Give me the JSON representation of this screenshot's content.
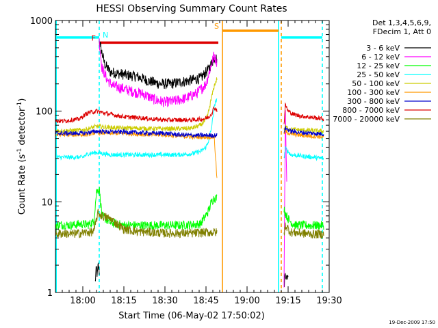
{
  "chart_data": {
    "type": "line",
    "title": "HESSI Observing Summary Count Rates",
    "xlabel": "Start Time (06-May-02 17:50:02)",
    "ylabel": "Count Rate (s",
    "ylabel_sup": "-1",
    "ylabel_mid": " detector",
    "ylabel_sup2": "-1",
    "ylabel_end": ")",
    "y_scale": "log",
    "ylim": [
      1,
      1000
    ],
    "y_ticks": [
      {
        "value": 1,
        "label": "1"
      },
      {
        "value": 10,
        "label": "10"
      },
      {
        "value": 100,
        "label": "100"
      },
      {
        "value": 1000,
        "label": "1000"
      }
    ],
    "xlim_minutes": [
      0,
      100
    ],
    "x_ticks": [
      {
        "minute": 10,
        "label": "18:00"
      },
      {
        "minute": 25,
        "label": "18:15"
      },
      {
        "minute": 40,
        "label": "18:30"
      },
      {
        "minute": 55,
        "label": "18:45"
      },
      {
        "minute": 70,
        "label": "19:00"
      },
      {
        "minute": 85,
        "label": "19:15"
      },
      {
        "minute": 100,
        "label": "19:30"
      }
    ],
    "legend": {
      "position": "right",
      "header_lines": [
        "Det 1,3,4,5,6,9,",
        "FDecim 1, Att 0"
      ]
    },
    "series": [
      {
        "name": "3 - 6 keV",
        "color": "#000000",
        "segments": [
          {
            "x": [
              14.5,
              15.0,
              15.3,
              15.6,
              16.0,
              16.0
            ],
            "y": [
              1.3,
              1.9,
              1.5,
              2.0,
              1.7,
              300
            ]
          },
          {
            "x": [
              16.0,
              18,
              20,
              23,
              26,
              30,
              34,
              38,
              42,
              46,
              50,
              53,
              56,
              58,
              59.0
            ],
            "y": [
              590,
              330,
              270,
              260,
              250,
              240,
              215,
              200,
              200,
              210,
              220,
              230,
              290,
              390,
              380
            ]
          },
          {
            "x": [
              83.5,
              84.0,
              84.5,
              85.0
            ],
            "y": [
              1.2,
              1.7,
              1.4,
              1.6
            ]
          }
        ]
      },
      {
        "name": "6 - 12 keV",
        "color": "#ff00ff",
        "segments": [
          {
            "x": [
              16.0,
              17,
              19,
              21,
              24,
              28,
              32,
              36,
              40,
              44,
              48,
              52,
              55,
              57,
              58,
              59.0
            ],
            "y": [
              590,
              300,
              220,
              190,
              180,
              165,
              155,
              135,
              125,
              130,
              140,
              160,
              200,
              330,
              420,
              340
            ]
          },
          {
            "x": [
              83.5,
              84.0,
              84.5
            ],
            "y": [
              1.3,
              100,
              15
            ]
          }
        ]
      },
      {
        "name": "12 - 25 keV",
        "color": "#00ff00",
        "segments": [
          {
            "x": [
              0,
              3,
              6,
              9,
              12,
              14,
              15.0,
              16.0,
              17,
              20,
              25,
              30,
              35,
              40,
              45,
              50,
              53,
              56,
              57,
              58,
              59.0
            ],
            "y": [
              5.5,
              5.6,
              5.5,
              5.7,
              5.6,
              6.0,
              13,
              14,
              7.0,
              5.9,
              5.5,
              5.5,
              5.5,
              5.5,
              5.5,
              5.6,
              5.7,
              8.0,
              10,
              11,
              11
            ]
          },
          {
            "x": [
              83.5,
              84.0,
              85.0,
              86.5,
              88,
              92,
              96,
              98.0
            ],
            "y": [
              8.5,
              7.5,
              6.5,
              5.8,
              5.5,
              5.5,
              5.5,
              5.5
            ]
          }
        ]
      },
      {
        "name": "25 - 50 keV",
        "color": "#00ffff",
        "segments": [
          {
            "x": [
              0,
              5,
              10,
              12,
              15,
              20,
              25,
              30,
              35,
              40,
              45,
              50,
              53,
              55,
              56,
              57,
              58,
              59.0
            ],
            "y": [
              31,
              31,
              31,
              34,
              35,
              33,
              33,
              33,
              33,
              33,
              33,
              34,
              36,
              40,
              48,
              65,
              110,
              140
            ]
          },
          {
            "x": [
              83.5,
              84.0,
              86,
              90,
              94,
              98.0
            ],
            "y": [
              30,
              39,
              33,
              32,
              31,
              30
            ]
          }
        ]
      },
      {
        "name": "50 - 100 keV",
        "color": "#cccc00",
        "segments": [
          {
            "x": [
              0,
              5,
              10,
              12,
              15,
              20,
              25,
              30,
              35,
              40,
              45,
              50,
              53,
              55,
              56,
              57,
              58,
              59.0
            ],
            "y": [
              61,
              61,
              62,
              64,
              68,
              66,
              65,
              65,
              64,
              64,
              64,
              65,
              70,
              80,
              100,
              140,
              190,
              230
            ]
          },
          {
            "x": [
              83.5,
              84.0,
              86,
              90,
              94,
              98.0
            ],
            "y": [
              62,
              67,
              63,
              62,
              61,
              60
            ]
          }
        ]
      },
      {
        "name": "100 - 300 keV",
        "color": "#ff9900",
        "segments": [
          {
            "x": [
              0,
              5,
              10,
              12,
              15,
              20,
              25,
              30,
              35,
              40,
              45,
              50,
              55,
              57,
              58,
              59.0
            ],
            "y": [
              55,
              55,
              55,
              56,
              58,
              57,
              57,
              56,
              55,
              55,
              53,
              52,
              52,
              52,
              52,
              18
            ]
          },
          {
            "x": [
              83.5,
              84.0,
              86,
              90,
              94,
              98.0
            ],
            "y": [
              56,
              60,
              56,
              54,
              53,
              52
            ]
          }
        ]
      },
      {
        "name": "300 - 800 keV",
        "color": "#0000cc",
        "segments": [
          {
            "x": [
              0,
              5,
              10,
              12,
              15,
              20,
              25,
              30,
              35,
              40,
              45,
              50,
              55,
              58,
              59.0
            ],
            "y": [
              57,
              57,
              57,
              58,
              60,
              59,
              59,
              58,
              57,
              57,
              55,
              54,
              54,
              54,
              54
            ]
          },
          {
            "x": [
              83.5,
              84.0,
              86,
              90,
              94,
              98.0
            ],
            "y": [
              60,
              65,
              60,
              58,
              57,
              56
            ]
          }
        ]
      },
      {
        "name": "800 - 7000 keV",
        "color": "#dd0000",
        "segments": [
          {
            "x": [
              0,
              3,
              6,
              9,
              10,
              12,
              15,
              18,
              22,
              26,
              30,
              35,
              40,
              45,
              50,
              54,
              56,
              57,
              58,
              59.0
            ],
            "y": [
              78,
              78,
              80,
              82,
              88,
              96,
              100,
              95,
              90,
              86,
              85,
              82,
              80,
              80,
              80,
              82,
              86,
              94,
              110,
              102
            ]
          },
          {
            "x": [
              83.5,
              84.0,
              85,
              87,
              90,
              94,
              98.0
            ],
            "y": [
              72,
              118,
              100,
              92,
              88,
              85,
              82
            ]
          }
        ]
      },
      {
        "name": "7000 - 20000 keV",
        "color": "#808000",
        "segments": [
          {
            "x": [
              0,
              3,
              6,
              9,
              12,
              14,
              15.5,
              17,
              20,
              25,
              30,
              35,
              40,
              45,
              50,
              55,
              58,
              59.0
            ],
            "y": [
              4.4,
              4.5,
              4.4,
              4.5,
              4.6,
              4.7,
              7.5,
              7.0,
              6.5,
              5.0,
              4.7,
              4.6,
              4.5,
              4.5,
              4.5,
              4.6,
              4.6,
              4.6
            ]
          },
          {
            "x": [
              83.5,
              84.0,
              86,
              90,
              94,
              98.0
            ],
            "y": [
              4.4,
              5.5,
              4.6,
              4.5,
              4.4,
              4.4
            ]
          }
        ]
      }
    ],
    "annotations": {
      "attenuator_bars": [
        {
          "label": "",
          "color": "#00ffff",
          "y": 650,
          "x_start": 0,
          "x_end": 15.5
        },
        {
          "label": "N",
          "color": "#00ffff",
          "y": 650,
          "x_start": 15.5,
          "x_end": 16.0
        },
        {
          "label": "F",
          "color": "#dd0000",
          "y": 570,
          "x_start": 16.0,
          "x_end": 59.5
        },
        {
          "label": "S",
          "color": "#ff9900",
          "y": 770,
          "x_start": 61.0,
          "x_end": 81.5
        },
        {
          "label": "",
          "color": "#00ffff",
          "y": 650,
          "x_start": 82.5,
          "x_end": 97.5
        }
      ],
      "vertical_lines": [
        {
          "x": 0.3,
          "color": "#00ffff",
          "style": "solid"
        },
        {
          "x": 16.0,
          "color": "#00ffff",
          "style": "dashed"
        },
        {
          "x": 61.0,
          "color": "#ff9900",
          "style": "solid"
        },
        {
          "x": 81.5,
          "color": "#00ffff",
          "style": "solid"
        },
        {
          "x": 82.5,
          "color": "#ff9900",
          "style": "dashed"
        },
        {
          "x": 97.5,
          "color": "#00ffff",
          "style": "dashed"
        }
      ]
    }
  },
  "footer_timestamp": "19-Dec-2009 17:50"
}
